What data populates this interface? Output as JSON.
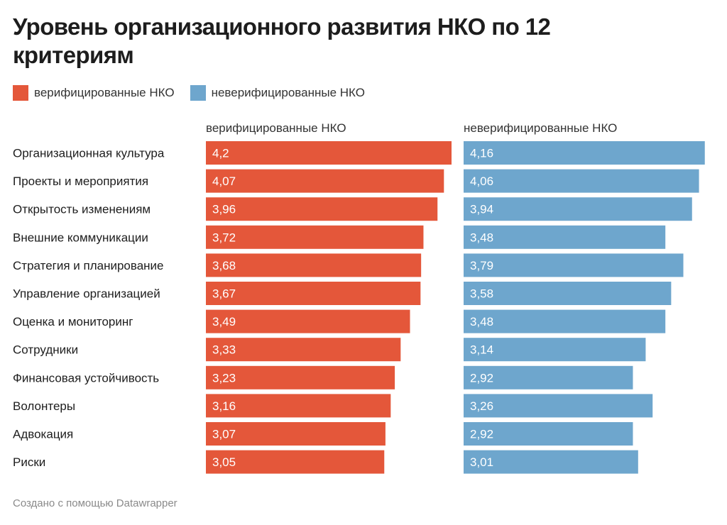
{
  "title": "Уровень организационного развития НКО по 12 критериям",
  "footer": "Создано с помощью Datawrapper",
  "colors": {
    "verified": "#e4573a",
    "unverified": "#6ea6cd",
    "label_text": "#ffffff"
  },
  "chart_data": {
    "type": "bar",
    "orientation": "horizontal",
    "layout": "split-panels",
    "title": "Уровень организационного развития НКО по 12 критериям",
    "legend_placement": "top-left",
    "grid": false,
    "xlim": [
      0,
      4.2
    ],
    "categories": [
      "Организационная культура",
      "Проекты и мероприятия",
      "Открытость изменениям",
      "Внешние коммуникации",
      "Стратегия и планирование",
      "Управление организацией",
      "Оценка и мониторинг",
      "Сотрудники",
      "Финансовая устойчивость",
      "Волонтеры",
      "Адвокация",
      "Риски"
    ],
    "series": [
      {
        "name": "верифицированные НКО",
        "color": "#e4573a",
        "values": [
          4.2,
          4.07,
          3.96,
          3.72,
          3.68,
          3.67,
          3.49,
          3.33,
          3.23,
          3.16,
          3.07,
          3.05
        ],
        "labels": [
          "4,2",
          "4,07",
          "3,96",
          "3,72",
          "3,68",
          "3,67",
          "3,49",
          "3,33",
          "3,23",
          "3,16",
          "3,07",
          "3,05"
        ]
      },
      {
        "name": "неверифицированные НКО",
        "color": "#6ea6cd",
        "values": [
          4.16,
          4.06,
          3.94,
          3.48,
          3.79,
          3.58,
          3.48,
          3.14,
          2.92,
          3.26,
          2.92,
          3.01
        ],
        "labels": [
          "4,16",
          "4,06",
          "3,94",
          "3,48",
          "3,79",
          "3,58",
          "3,48",
          "3,14",
          "2,92",
          "3,26",
          "2,92",
          "3,01"
        ]
      }
    ]
  }
}
